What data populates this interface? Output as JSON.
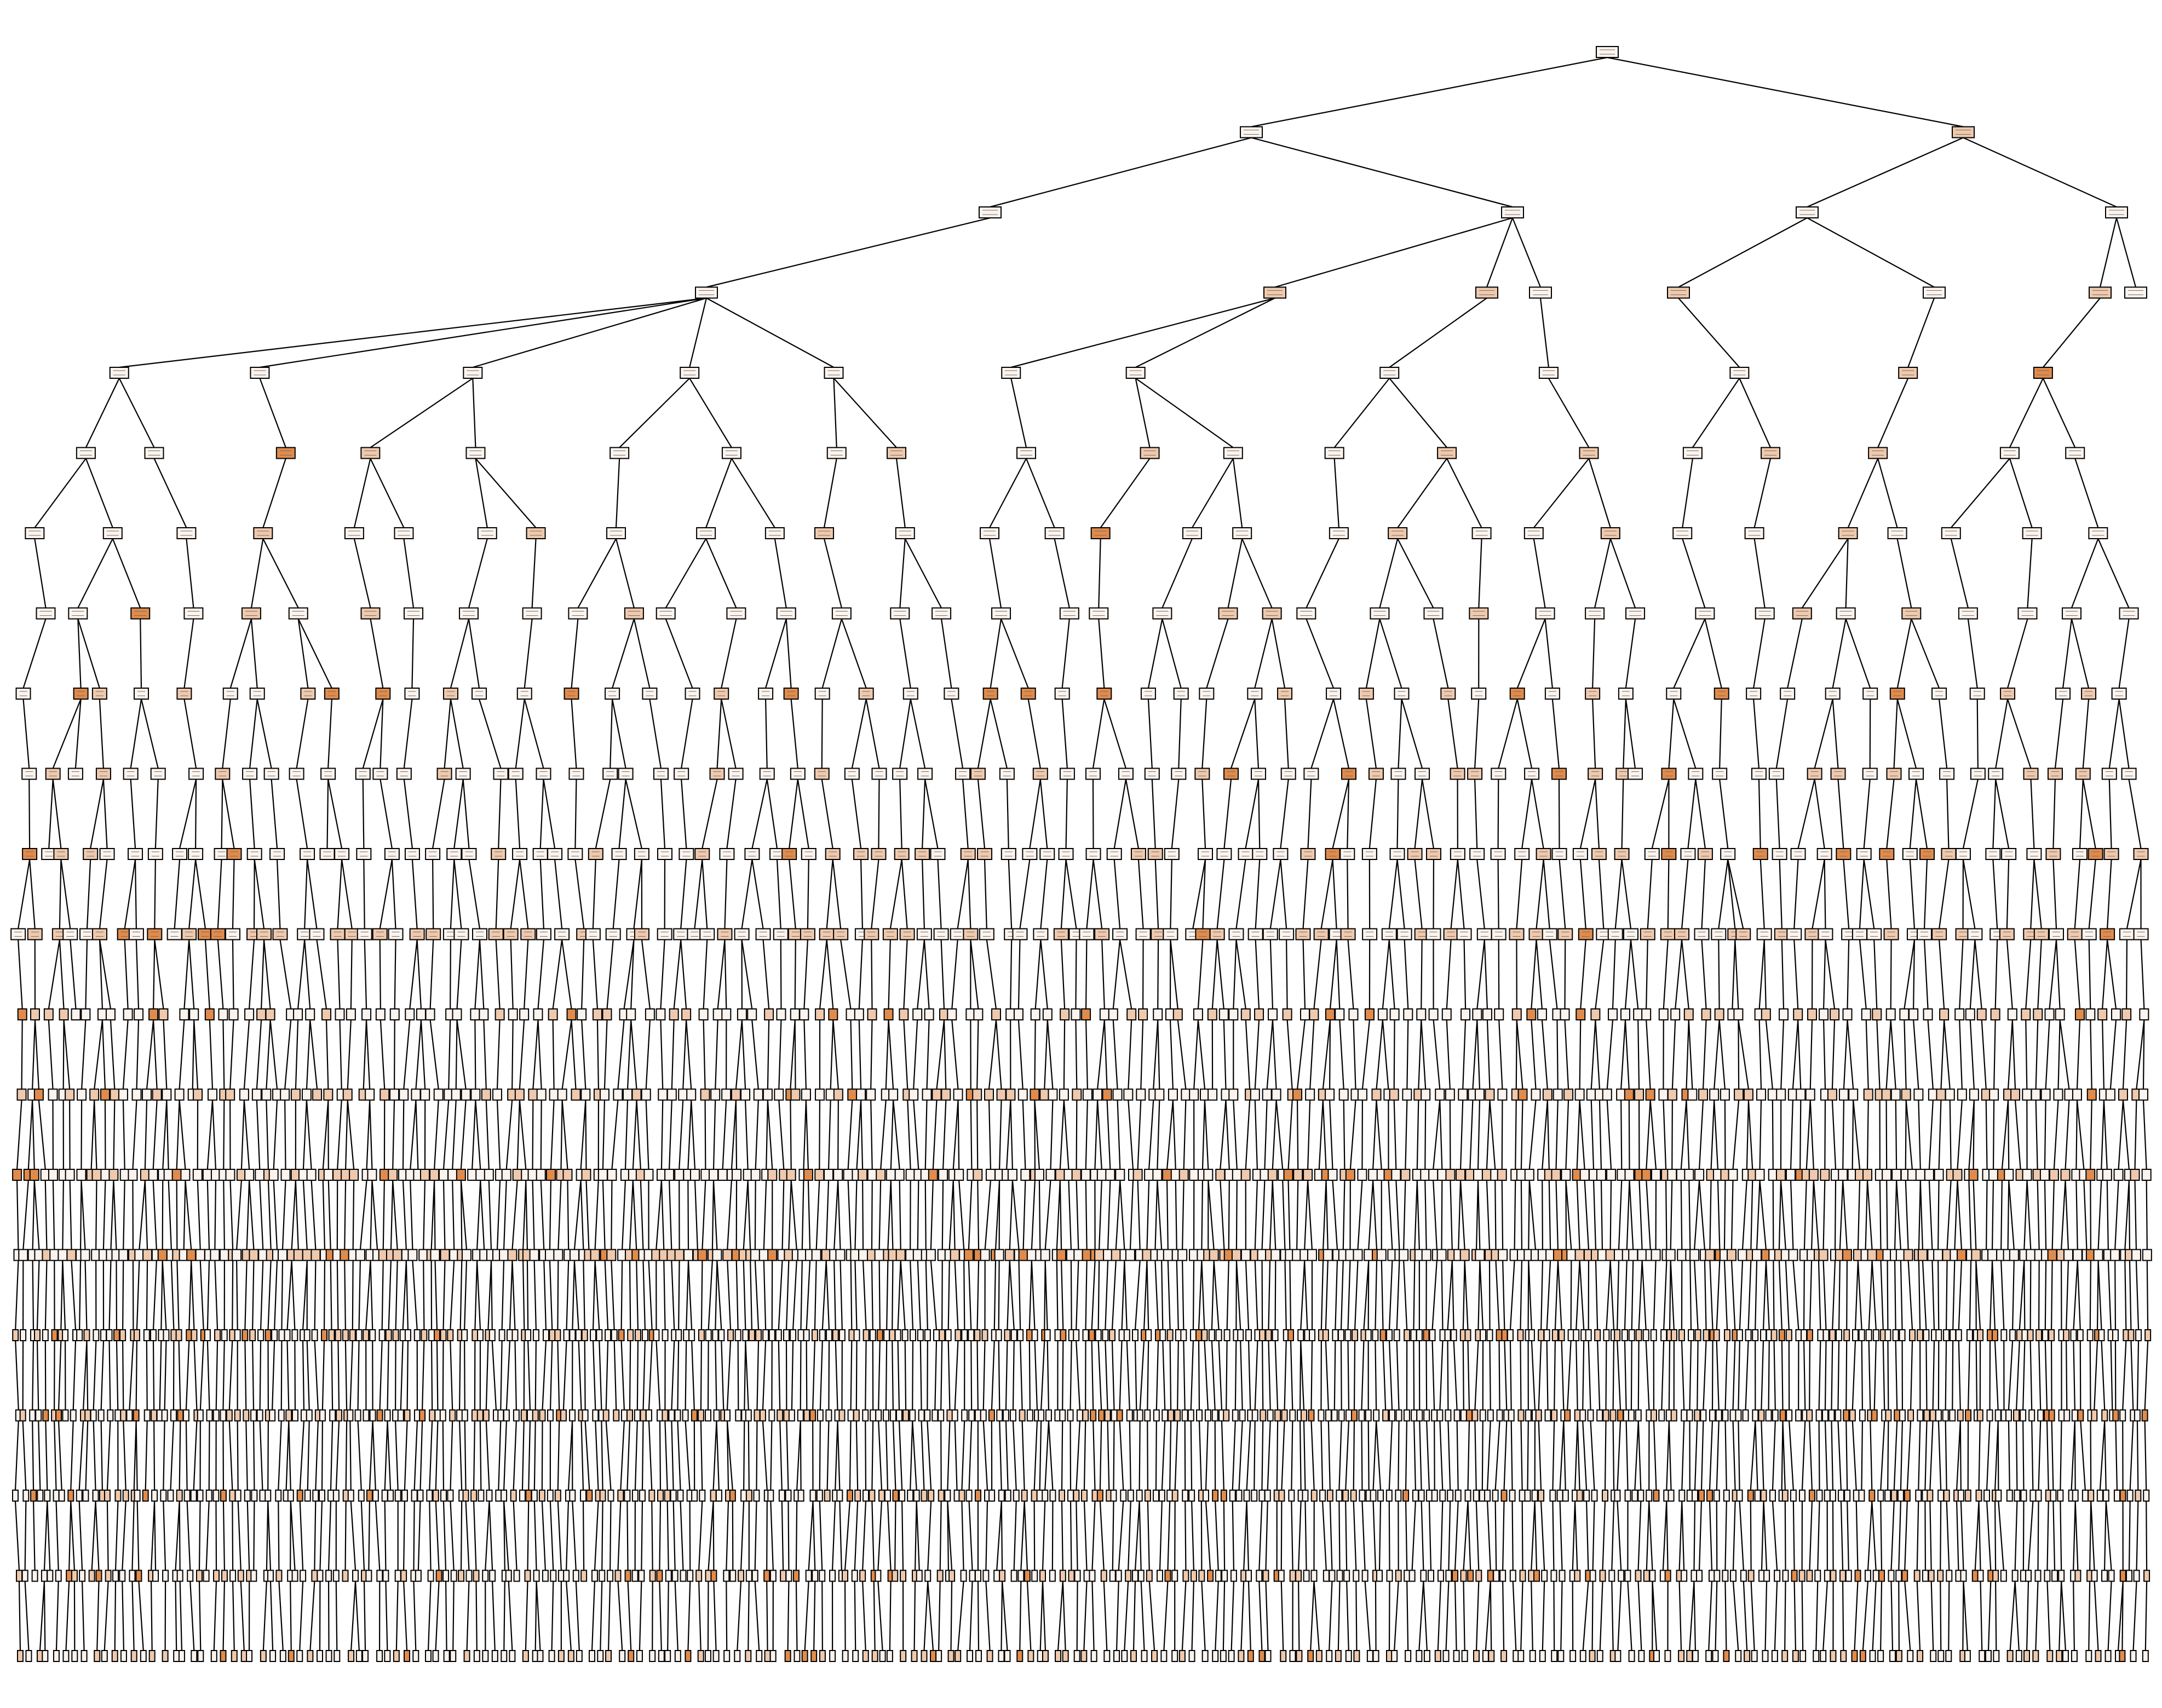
{
  "diagram": {
    "type": "decision-tree",
    "levels": [
      {
        "depth": 0,
        "count": 1
      },
      {
        "depth": 1,
        "count": 2
      },
      {
        "depth": 2,
        "count": 4
      },
      {
        "depth": 3,
        "count": 8
      },
      {
        "depth": 4,
        "count": 12
      },
      {
        "depth": 5,
        "count": 20
      },
      {
        "depth": 6,
        "count": 30
      },
      {
        "depth": 7,
        "count": 40
      },
      {
        "depth": 8,
        "count": 56
      },
      {
        "depth": 9,
        "count": 78
      },
      {
        "depth": 10,
        "count": 100
      },
      {
        "depth": 11,
        "count": 130
      },
      {
        "depth": 12,
        "count": 160
      },
      {
        "depth": 13,
        "count": 200
      },
      {
        "depth": 14,
        "count": 240
      },
      {
        "depth": 15,
        "count": 280
      },
      {
        "depth": 16,
        "count": 300
      },
      {
        "depth": 17,
        "count": 300
      },
      {
        "depth": 18,
        "count": 280
      },
      {
        "depth": 19,
        "count": 260
      },
      {
        "depth": 20,
        "count": 220
      }
    ],
    "colors": {
      "edge": "#000000",
      "node_border": "#000000",
      "background": "#ffffff",
      "node_fill_light": "#fbf3ee",
      "node_fill_mid": "#efc9ad",
      "node_fill_dark": "#e08b4c"
    }
  }
}
